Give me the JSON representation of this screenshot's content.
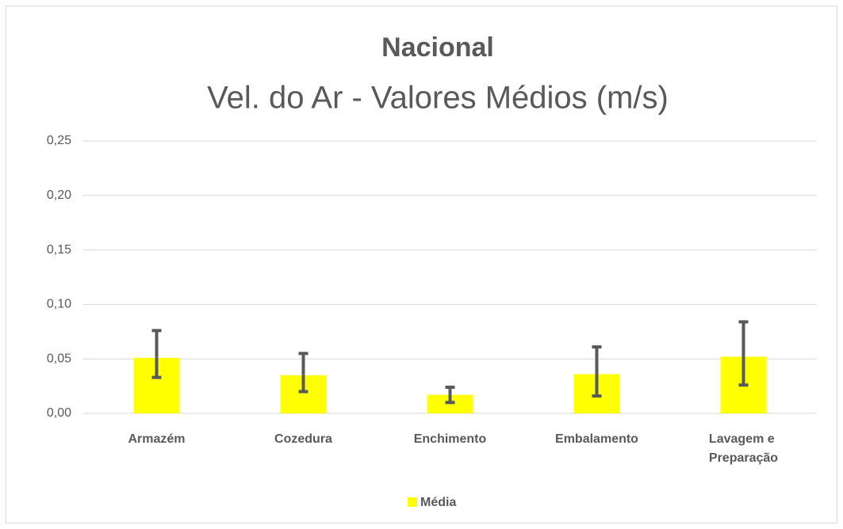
{
  "chart_data": {
    "type": "bar",
    "title": "Nacional",
    "subtitle": "Vel. do Ar - Valores Médios (m/s)",
    "categories": [
      "Armazém",
      "Cozedura",
      "Enchimento",
      "Embalamento",
      "Lavagem e Preparação"
    ],
    "series": [
      {
        "name": "Média",
        "color": "#ffff00",
        "values": [
          0.051,
          0.035,
          0.017,
          0.036,
          0.052
        ],
        "error_plus": [
          0.025,
          0.02,
          0.007,
          0.025,
          0.032
        ],
        "error_minus": [
          0.018,
          0.015,
          0.007,
          0.02,
          0.026
        ]
      }
    ],
    "error_color": "#595959",
    "ylim": [
      0,
      0.25
    ],
    "yticks": [
      {
        "value": 0,
        "label": "0,00"
      },
      {
        "value": 0.05,
        "label": "0,05"
      },
      {
        "value": 0.1,
        "label": "0,10"
      },
      {
        "value": 0.15,
        "label": "0,15"
      },
      {
        "value": 0.2,
        "label": "0,20"
      },
      {
        "value": 0.25,
        "label": "0,25"
      }
    ],
    "grid": true,
    "legend": "bottom"
  }
}
